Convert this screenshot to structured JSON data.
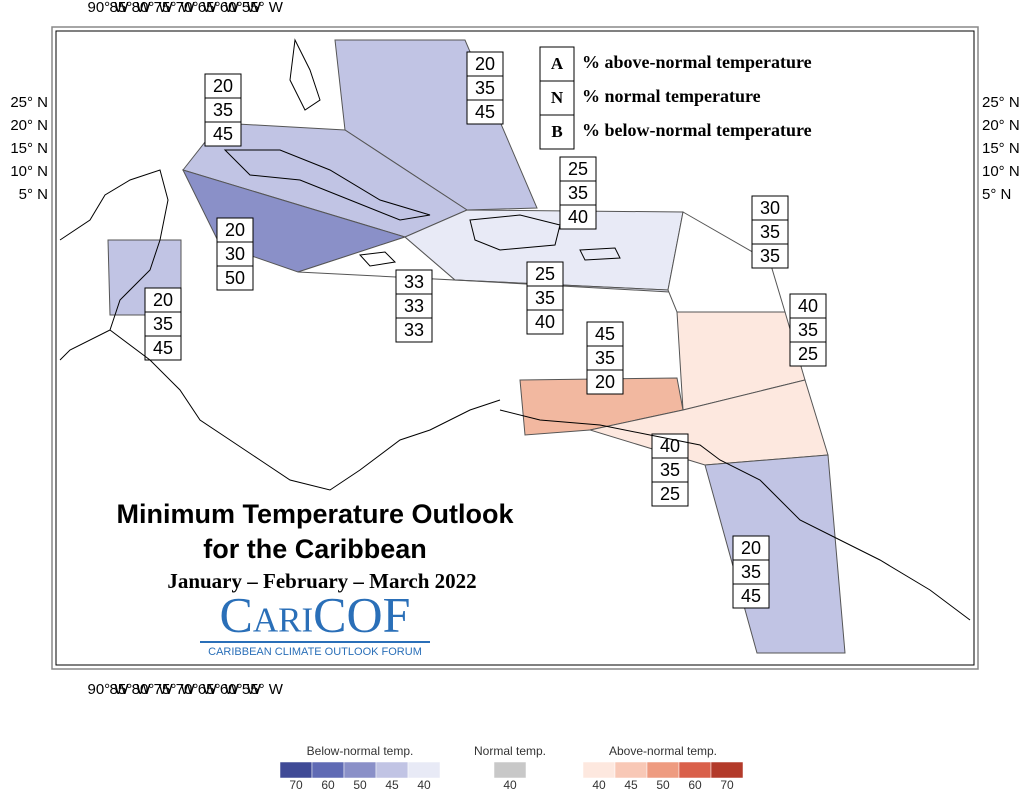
{
  "map": {
    "lon_labels": [
      "90° W",
      "85° W",
      "80° W",
      "75° W",
      "70° W",
      "65° W",
      "60° W",
      "55° W"
    ],
    "lat_labels": [
      "25° N",
      "20° N",
      "15° N",
      "10° N",
      "5° N"
    ]
  },
  "key": [
    {
      "letter": "A",
      "text": "% above-normal temperature"
    },
    {
      "letter": "N",
      "text": "% normal temperature"
    },
    {
      "letter": "B",
      "text": "% below-normal temperature"
    }
  ],
  "regions": [
    {
      "above": 20,
      "normal": 35,
      "below": 45,
      "color": "#c1c4e4"
    },
    {
      "above": 20,
      "normal": 35,
      "below": 45,
      "color": "#c1c4e4"
    },
    {
      "above": 20,
      "normal": 30,
      "below": 50,
      "color": "#8a90c8"
    },
    {
      "above": 20,
      "normal": 35,
      "below": 45,
      "color": "#c1c4e4"
    },
    {
      "above": 33,
      "normal": 33,
      "below": 33,
      "color": "#ffffff"
    },
    {
      "above": 25,
      "normal": 35,
      "below": 40,
      "color": "#e8eaf6"
    },
    {
      "above": 25,
      "normal": 35,
      "below": 40,
      "color": "#e8eaf6"
    },
    {
      "above": 30,
      "normal": 35,
      "below": 35,
      "color": "#ffffff"
    },
    {
      "above": 40,
      "normal": 35,
      "below": 25,
      "color": "#fde8df"
    },
    {
      "above": 45,
      "normal": 35,
      "below": 20,
      "color": "#f2b8a0"
    },
    {
      "above": 40,
      "normal": 35,
      "below": 25,
      "color": "#fde8df"
    },
    {
      "above": 20,
      "normal": 35,
      "below": 45,
      "color": "#c1c4e4"
    }
  ],
  "title": {
    "line1": "Minimum Temperature Outlook",
    "line2": "for the Caribbean",
    "period": "January – February – March 2022"
  },
  "logo": {
    "name": "CariCOF",
    "subtitle": "CARIBBEAN CLIMATE OUTLOOK FORUM"
  },
  "colorbar": {
    "below": {
      "label": "Below-normal temp.",
      "ticks": [
        70,
        60,
        50,
        45,
        40
      ],
      "colors": [
        "#3f4a96",
        "#5f6ab4",
        "#8a90c8",
        "#c1c4e4",
        "#e8eaf6"
      ]
    },
    "normal": {
      "label": "Normal temp.",
      "ticks": [
        40
      ],
      "colors": [
        "#c8c8c8"
      ]
    },
    "above": {
      "label": "Above-normal temp.",
      "ticks": [
        40,
        45,
        50,
        60,
        70
      ],
      "colors": [
        "#fde8df",
        "#f8c8b6",
        "#ee9b80",
        "#d9604a",
        "#b33a2a"
      ]
    }
  }
}
